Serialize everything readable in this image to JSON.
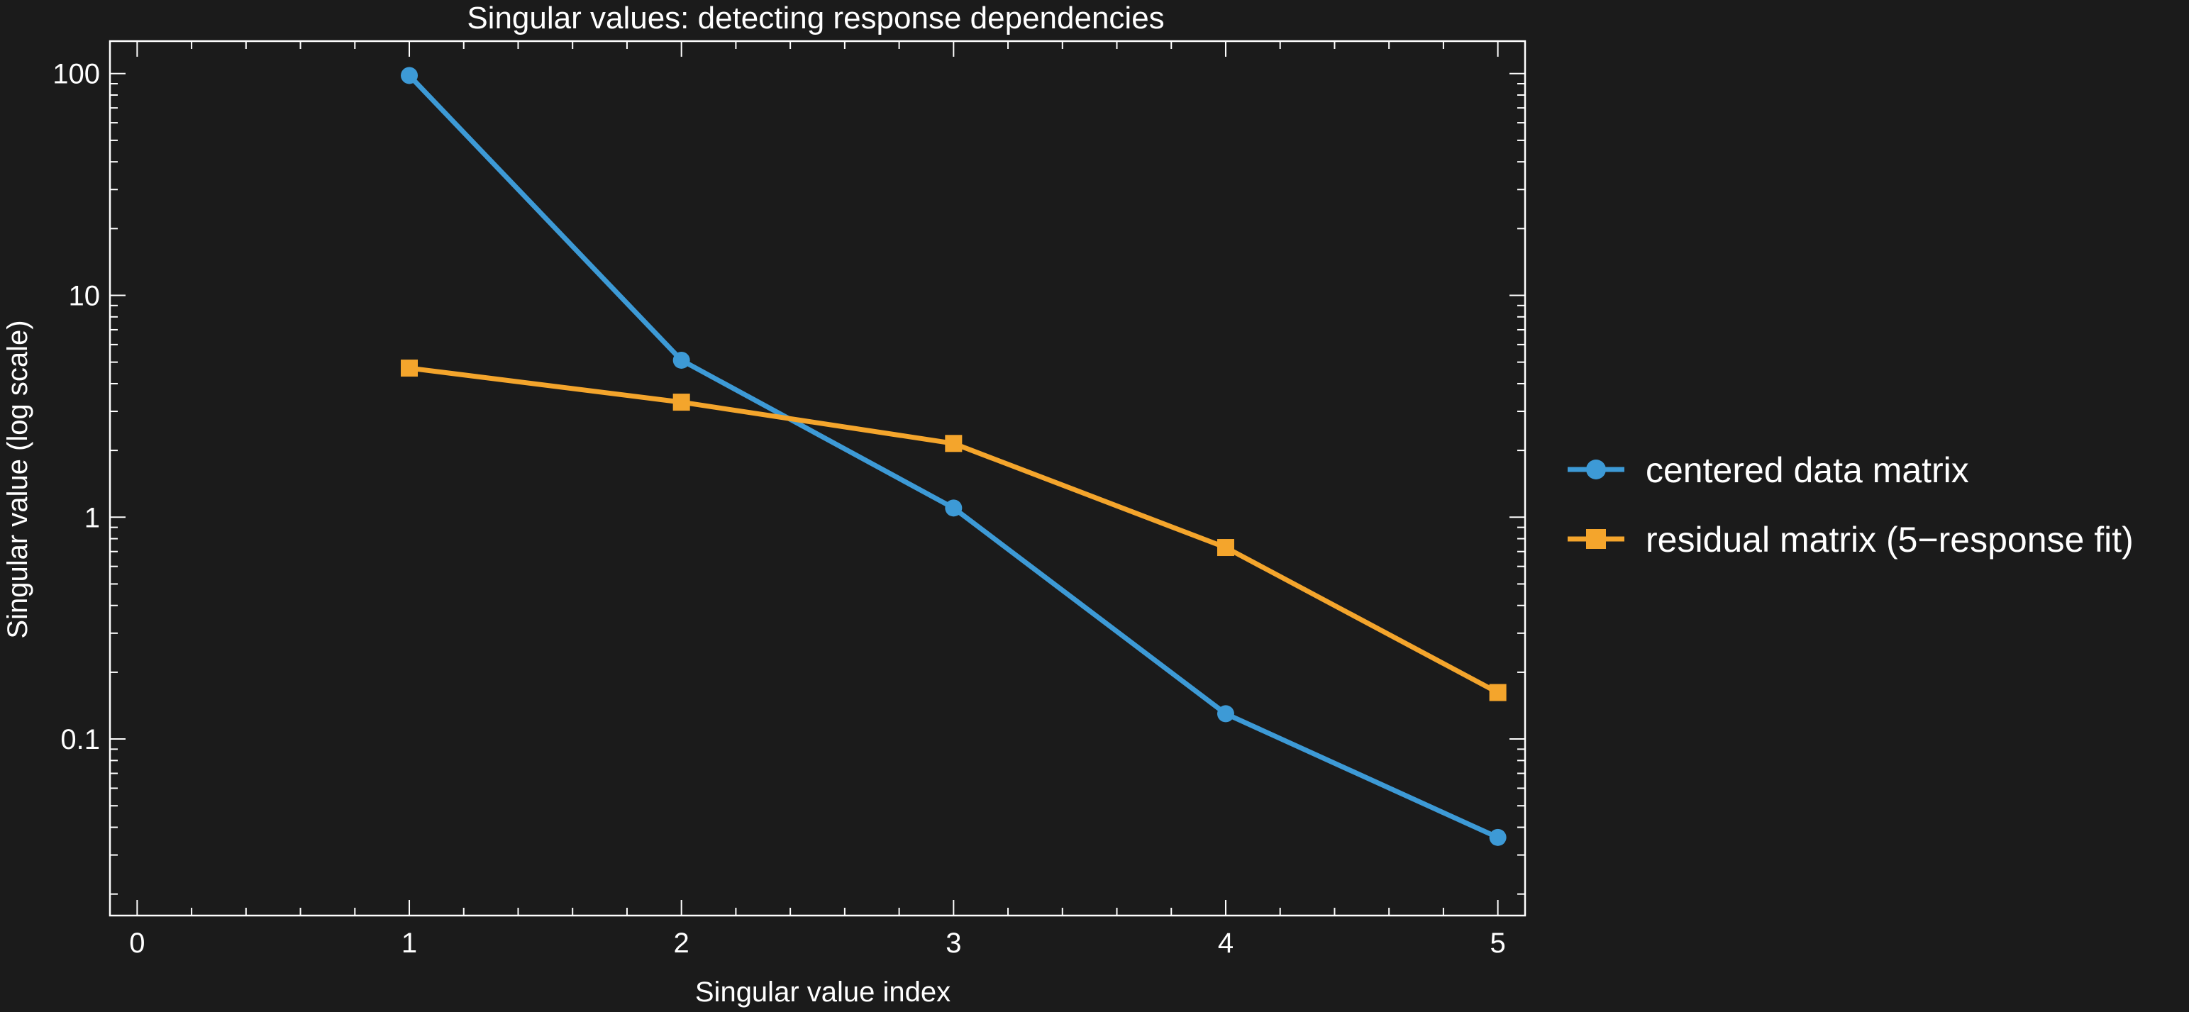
{
  "chart_data": {
    "type": "line",
    "title": "Singular values: detecting response dependencies",
    "xlabel": "Singular value index",
    "ylabel": "Singular value (log scale)",
    "xlim": [
      -0.1,
      5.1
    ],
    "ylim": [
      0.016,
      140
    ],
    "yscale": "log",
    "x_ticks": [
      0,
      1,
      2,
      3,
      4,
      5
    ],
    "x_tick_labels": [
      "0",
      "1",
      "2",
      "3",
      "4",
      "5"
    ],
    "y_ticks": [
      0.1,
      1,
      10,
      100
    ],
    "y_tick_labels": [
      "0.1",
      "1",
      "10",
      "100"
    ],
    "legend_position": "right, outside plot",
    "grid": false,
    "series": [
      {
        "name": "centered data matrix",
        "marker": "circle",
        "color": "#3d9ad6",
        "x": [
          1,
          2,
          3,
          4,
          5
        ],
        "y": [
          98,
          5.1,
          1.1,
          0.13,
          0.036
        ]
      },
      {
        "name": "residual matrix (5−response fit)",
        "marker": "square",
        "color": "#f4a52c",
        "x": [
          1,
          2,
          3,
          4,
          5
        ],
        "y": [
          4.7,
          3.3,
          2.15,
          0.73,
          0.162
        ]
      }
    ]
  }
}
